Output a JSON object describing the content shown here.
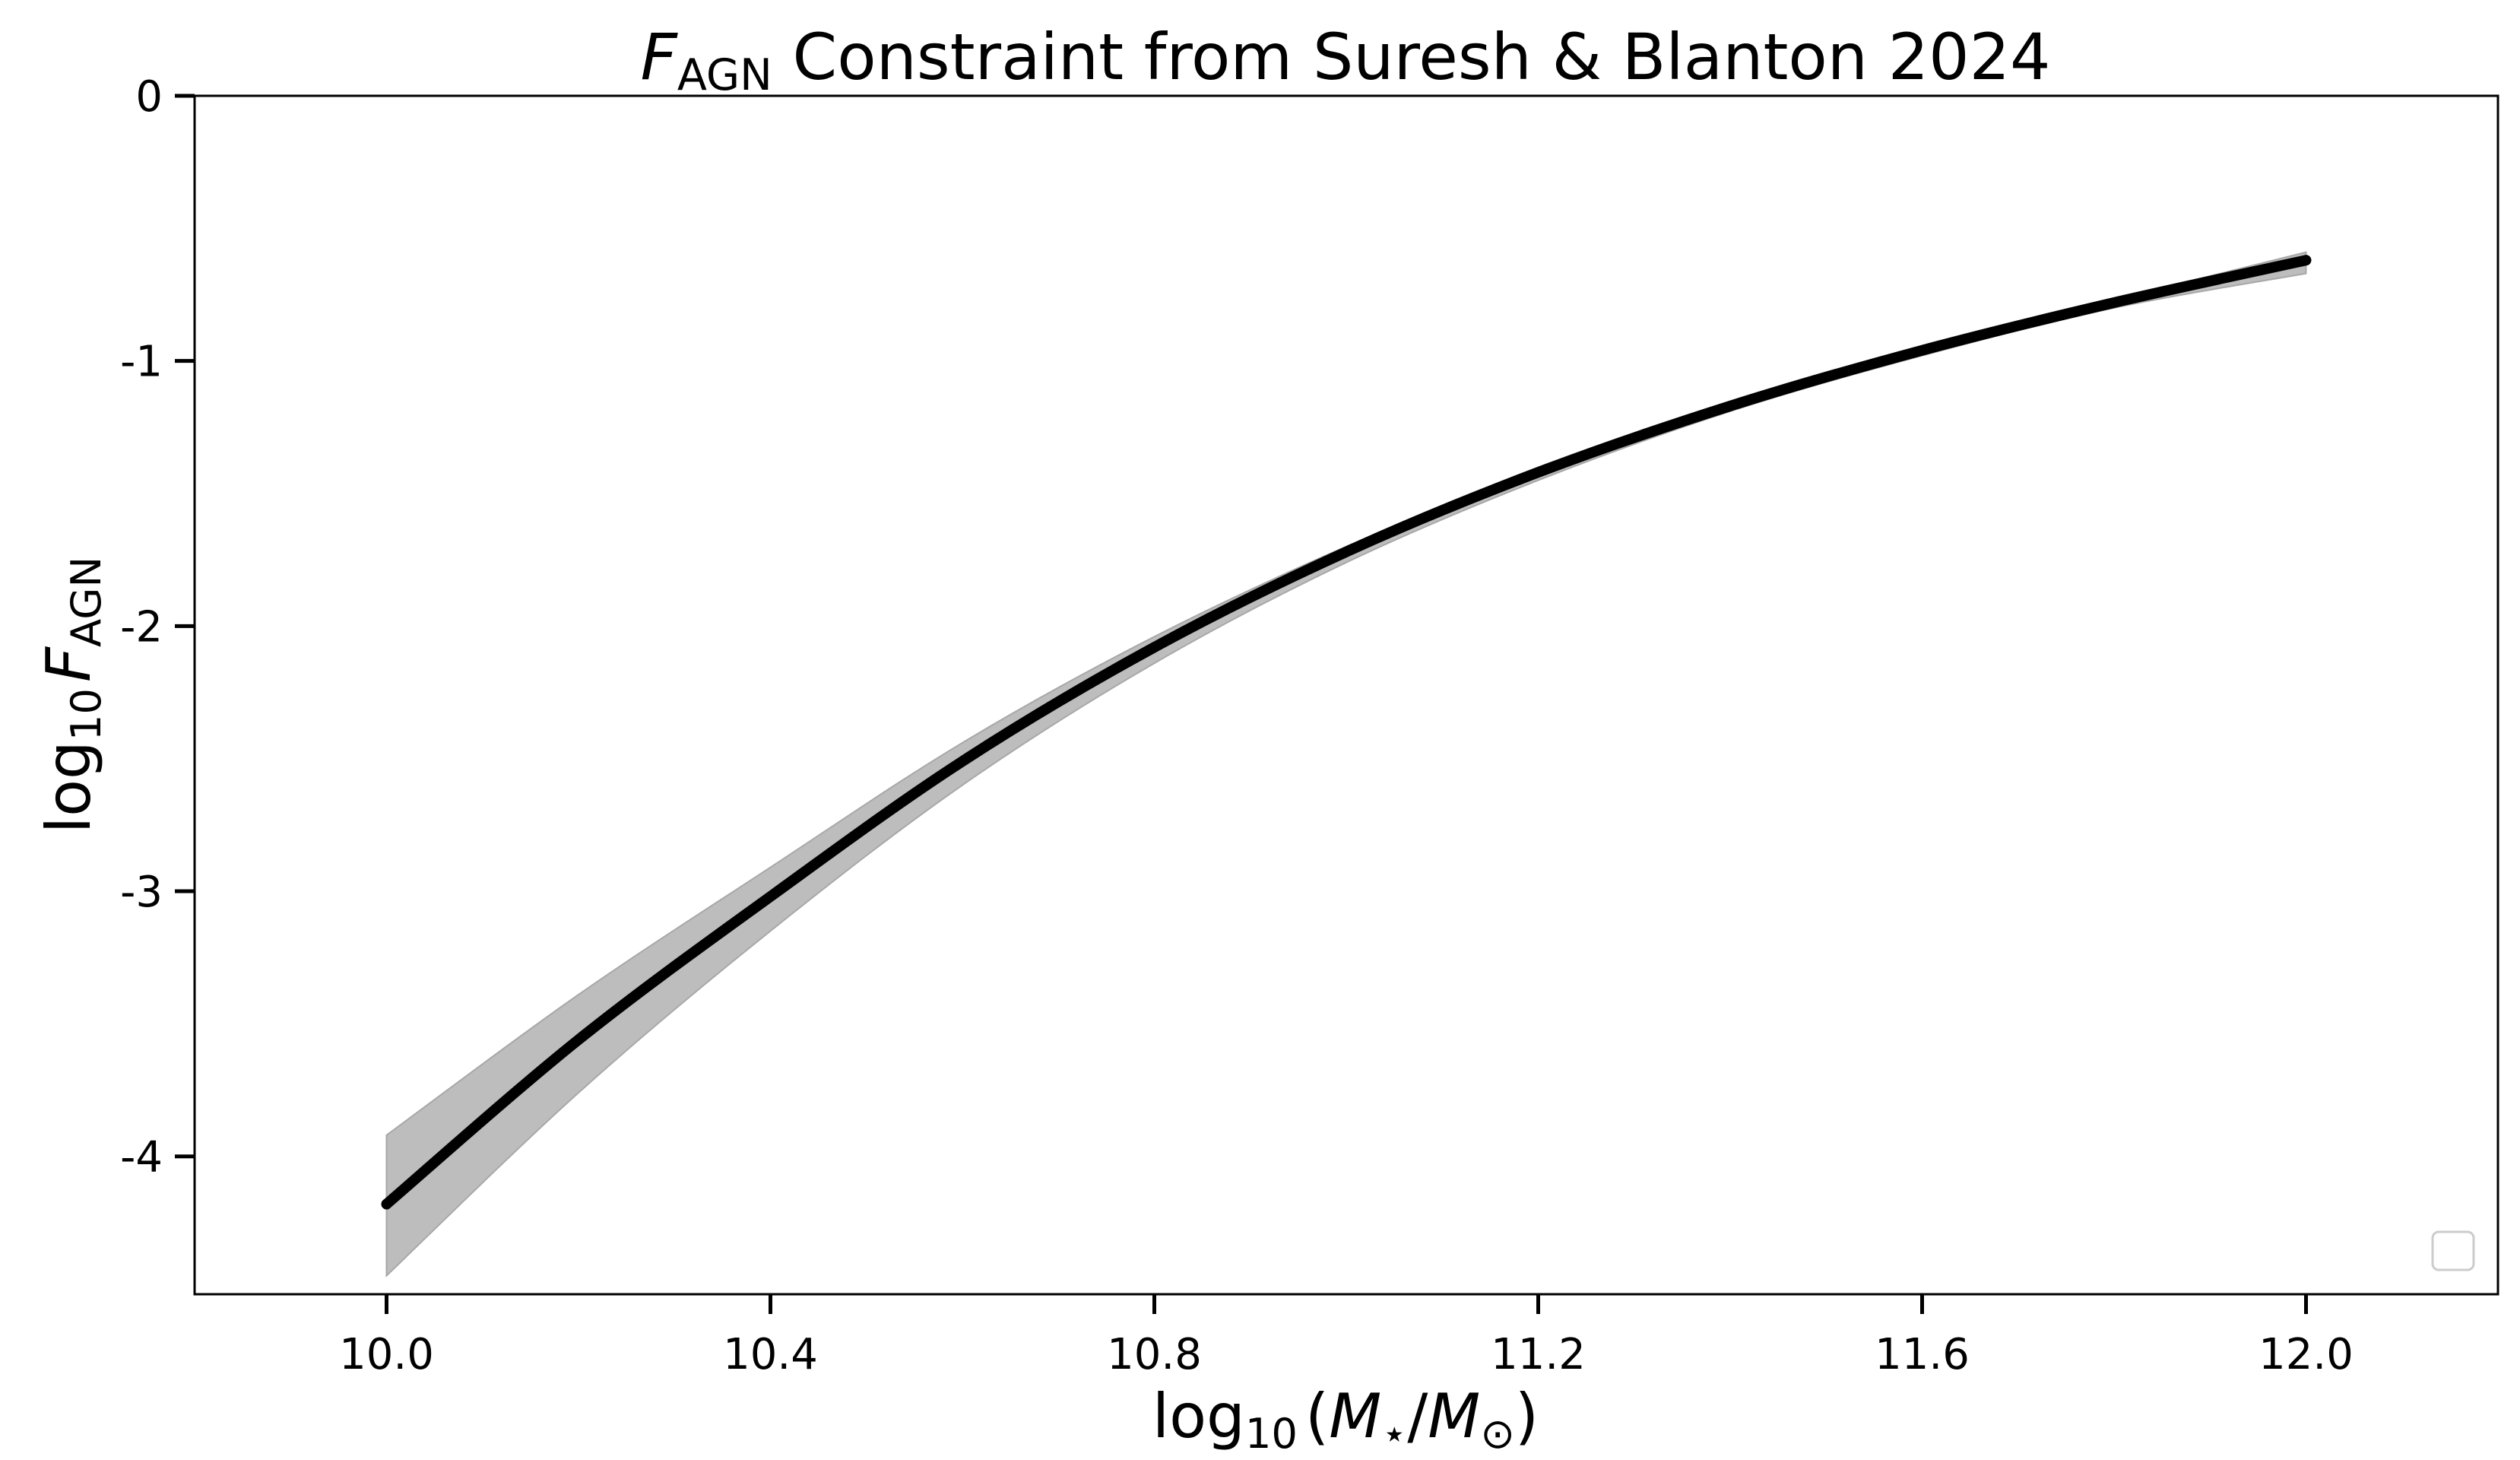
{
  "chart_data": {
    "type": "line",
    "title": {
      "main": "F",
      "sub": "AGN",
      "rest": " Constraint from Suresh & Blanton 2024"
    },
    "xlabel": {
      "lead": "log",
      "sub": "10",
      "open": "(",
      "M1": "M",
      "star": "⋆",
      "slash": "/",
      "M2": "M",
      "sun": "⊙",
      "close": ")"
    },
    "ylabel": {
      "lead": "log",
      "sub": "10",
      "var": "F",
      "var_sub": "AGN"
    },
    "xlim": [
      9.8,
      12.2
    ],
    "ylim": [
      -4.52,
      0
    ],
    "xticks": [
      10.0,
      10.4,
      10.8,
      11.2,
      11.6,
      12.0
    ],
    "xtick_labels": [
      "10.0",
      "10.4",
      "10.8",
      "11.2",
      "11.6",
      "12.0"
    ],
    "yticks": [
      0,
      -1,
      -2,
      -3,
      -4
    ],
    "ytick_labels": [
      "0",
      "-1",
      "-2",
      "-3",
      "-4"
    ],
    "grid": false,
    "legend": {
      "placement": "lower-right",
      "entries": []
    },
    "x": [
      10.0,
      10.2,
      10.4,
      10.6,
      10.8,
      11.0,
      11.2,
      11.4,
      11.6,
      11.8,
      12.0
    ],
    "series": [
      {
        "values": [
          -4.18,
          -3.56,
          -3.02,
          -2.51,
          -2.08,
          -1.72,
          -1.42,
          -1.17,
          -0.96,
          -0.78,
          -0.62
        ],
        "band_upper": [
          -3.92,
          -3.39,
          -2.91,
          -2.44,
          -2.04,
          -1.7,
          -1.41,
          -1.16,
          -0.95,
          -0.77,
          -0.59
        ],
        "band_lower": [
          -4.45,
          -3.76,
          -3.15,
          -2.6,
          -2.14,
          -1.76,
          -1.45,
          -1.19,
          -0.98,
          -0.8,
          -0.67
        ]
      }
    ],
    "colors": {
      "line": "#000000",
      "band": "#bdbdbd",
      "band_edge": "#a8a8a8"
    }
  }
}
